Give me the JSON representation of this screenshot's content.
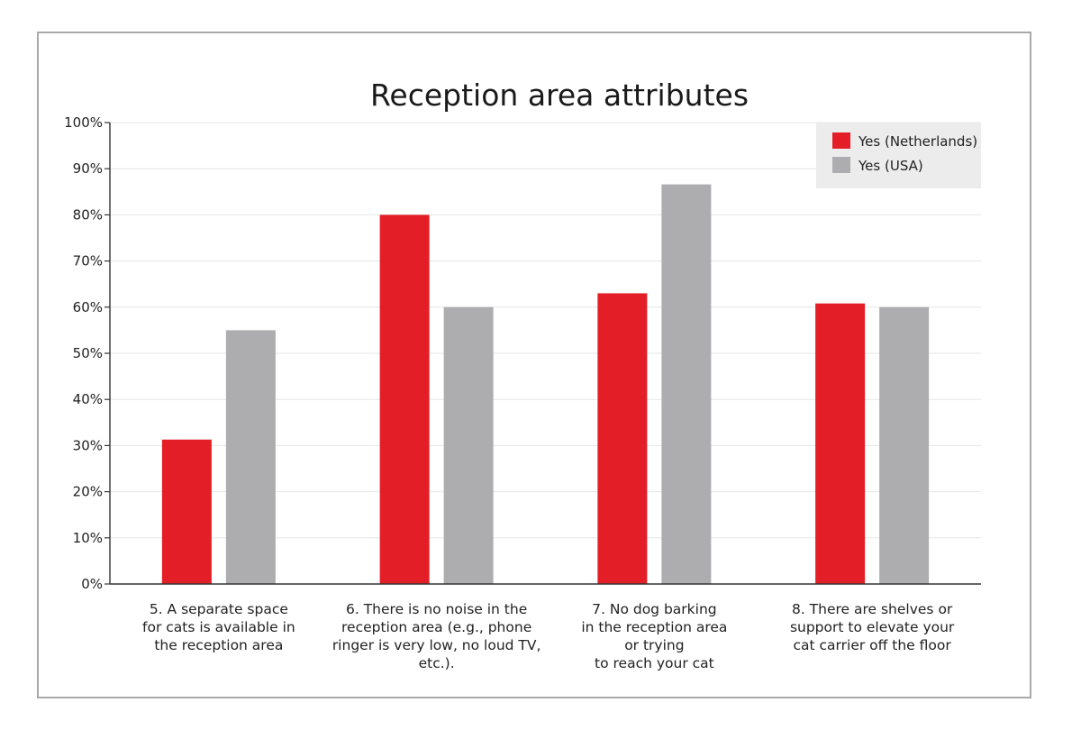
{
  "chart_data": {
    "type": "bar",
    "title": "Reception area attributes",
    "xlabel": "",
    "ylabel": "",
    "ylim": [
      0,
      100
    ],
    "y_ticks": [
      "0%",
      "10%",
      "20%",
      "30%",
      "40%",
      "50%",
      "60%",
      "70%",
      "80%",
      "90%",
      "100%"
    ],
    "grid": true,
    "legend_position": "top-right",
    "categories": [
      [
        "5. A separate space",
        "for cats is available in",
        "the reception area"
      ],
      [
        "6. There is no noise in the",
        "reception area (e.g., phone",
        "ringer is very low, no loud TV,",
        "etc.)."
      ],
      [
        "7. No dog barking",
        "in the reception area",
        "or trying",
        "to reach your cat"
      ],
      [
        "8. There are shelves or",
        "support to elevate your",
        "cat carrier off the floor"
      ]
    ],
    "series": [
      {
        "name": "Yes (Netherlands)",
        "color": "#e31e26",
        "values": [
          31.3,
          80,
          63,
          60.8
        ]
      },
      {
        "name": "Yes (USA)",
        "color": "#adadaf",
        "values": [
          55,
          60,
          86.6,
          60
        ]
      }
    ]
  }
}
